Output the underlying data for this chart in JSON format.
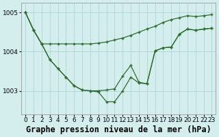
{
  "title": "Graphe pression niveau de la mer (hPa)",
  "x_labels": [
    "0",
    "1",
    "2",
    "3",
    "4",
    "5",
    "6",
    "7",
    "8",
    "9",
    "10",
    "11",
    "12",
    "13",
    "14",
    "15",
    "16",
    "17",
    "18",
    "19",
    "20",
    "21",
    "22",
    "23"
  ],
  "line1": [
    1005.0,
    1004.55,
    1004.2,
    1004.2,
    1004.2,
    1004.2,
    1004.2,
    1004.2,
    1004.2,
    1004.22,
    1004.25,
    1004.3,
    1004.35,
    1004.42,
    1004.5,
    1004.58,
    1004.65,
    1004.75,
    1004.82,
    1004.87,
    1004.92,
    1004.9,
    1004.92,
    1004.95
  ],
  "line2": [
    1005.0,
    1004.55,
    1004.2,
    1003.8,
    1003.57,
    1003.35,
    1003.13,
    1003.02,
    1003.0,
    1003.0,
    1003.02,
    1003.05,
    1003.38,
    1003.65,
    1003.22,
    1003.18,
    1004.02,
    1004.1,
    1004.12,
    1004.45,
    1004.58,
    1004.55,
    1004.58,
    1004.6
  ],
  "line3": [
    1005.0,
    1004.55,
    1004.2,
    1003.8,
    1003.57,
    1003.35,
    1003.13,
    1003.02,
    1003.0,
    1002.97,
    1002.72,
    1002.72,
    1003.0,
    1003.35,
    1003.2,
    1003.18,
    1004.02,
    1004.1,
    1004.12,
    1004.45,
    1004.58,
    1004.55,
    1004.58,
    1004.6
  ],
  "bg_color": "#d4eeee",
  "line_color": "#2d6a2d",
  "grid_color": "#aed4d4",
  "ylim": [
    1002.4,
    1005.25
  ],
  "yticks": [
    1003,
    1004,
    1005
  ],
  "title_fontsize": 8.5,
  "tick_fontsize": 6.5
}
